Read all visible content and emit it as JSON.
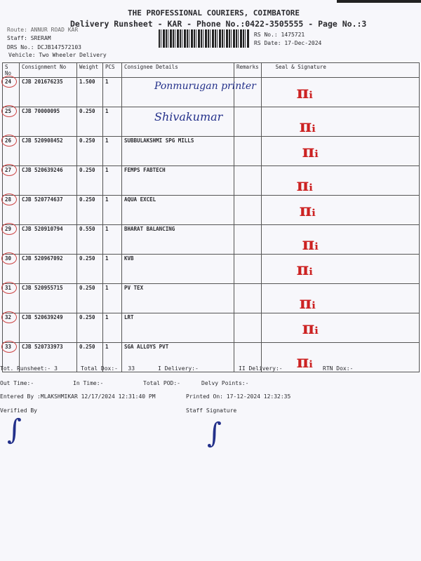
{
  "header": {
    "company": "THE PROFESSIONAL COURIERS, COIMBATORE",
    "title": "Delivery Runsheet - KAR - Phone No.:0422-3505555 - Page No.:3",
    "route": "Route: ANNUR ROAD KAR",
    "staff": "Staff: SRERAM",
    "drs_no": "DRS No.: DCJB147572103",
    "vehicle": "Vehicle: Two Wheeler Delivery",
    "rs_no": "RS No.: 1475721",
    "rs_date": "RS Date: 17-Dec-2024"
  },
  "table": {
    "columns": [
      "S No",
      "Consignment No",
      "Weight",
      "PCS",
      "Consignee Details",
      "Remarks",
      "Seal & Signature"
    ],
    "rows": [
      {
        "sno": "24",
        "consignment": "CJB 201676235",
        "weight": "1.500",
        "pcs": "1",
        "consignee": "",
        "handwritten": "Ponmurugan printer"
      },
      {
        "sno": "25",
        "consignment": "CJB 70000095",
        "weight": "0.250",
        "pcs": "1",
        "consignee": "",
        "handwritten": "Shivakumar"
      },
      {
        "sno": "26",
        "consignment": "CJB 520908452",
        "weight": "0.250",
        "pcs": "1",
        "consignee": "SUBBULAKSHMI SPG MILLS"
      },
      {
        "sno": "27",
        "consignment": "CJB 520639246",
        "weight": "0.250",
        "pcs": "1",
        "consignee": "FEMPS FABTECH"
      },
      {
        "sno": "28",
        "consignment": "CJB 520774637",
        "weight": "0.250",
        "pcs": "1",
        "consignee": "AQUA EXCEL"
      },
      {
        "sno": "29",
        "consignment": "CJB 520910794",
        "weight": "0.550",
        "pcs": "1",
        "consignee": "BHARAT BALANCING"
      },
      {
        "sno": "30",
        "consignment": "CJB 520967092",
        "weight": "0.250",
        "pcs": "1",
        "consignee": "KVB"
      },
      {
        "sno": "31",
        "consignment": "CJB 520955715",
        "weight": "0.250",
        "pcs": "1",
        "consignee": "PV TEX"
      },
      {
        "sno": "32",
        "consignment": "CJB 520639249",
        "weight": "0.250",
        "pcs": "1",
        "consignee": "LRT"
      },
      {
        "sno": "33",
        "consignment": "CJB 520733973",
        "weight": "0.250",
        "pcs": "1",
        "consignee": "SGA ALLOYS PVT"
      }
    ]
  },
  "footer": {
    "tot_runsheet": "Tot. Runsheet:- 3",
    "total_dox": "Total Dox:-   33",
    "i_delivery": "I Delivery:-",
    "ii_delivery": "II Delivery:-",
    "rtn_dox": "RTN Dox:-",
    "out_time": "Out Time:-",
    "in_time": "In Time:-",
    "total_pod": "Total POD:-",
    "delvy_points": "Delvy Points:-",
    "entered_by": "Entered By :MLAKSHMIKAR 12/17/2024 12:31:40 PM",
    "printed_on": "Printed On: 17-12-2024 12:32:35",
    "verified_by": "Verified By",
    "staff_signature": "Staff Signature"
  },
  "colors": {
    "ink_blue": "#23308a",
    "ink_red": "#c22",
    "paper": "#f7f7fb"
  }
}
